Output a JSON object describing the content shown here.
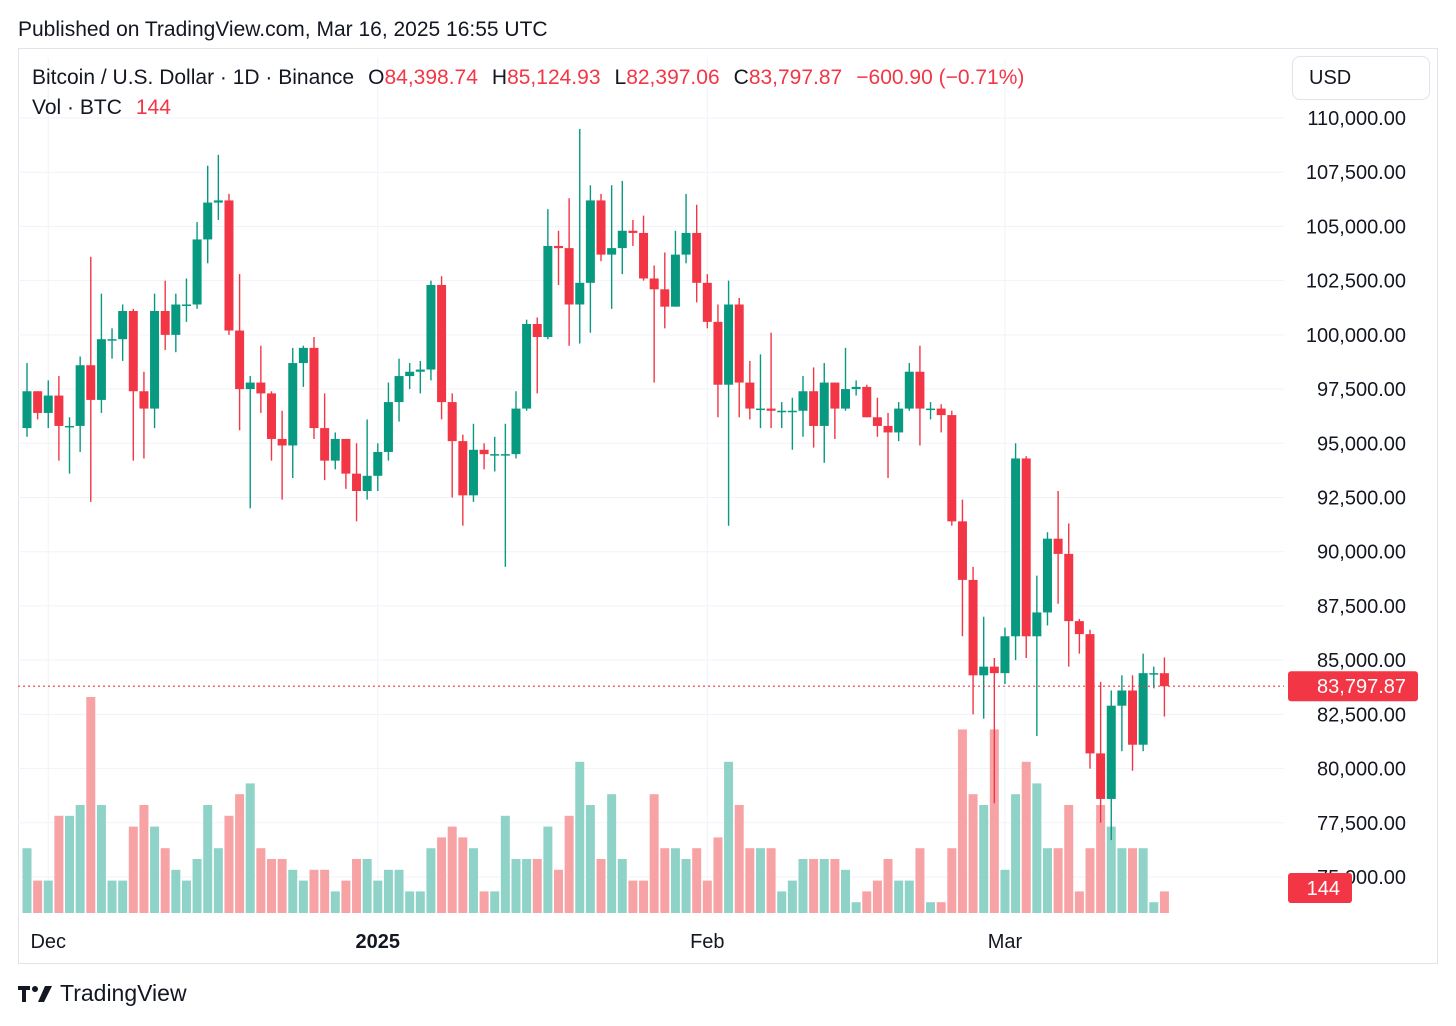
{
  "published": "Published on TradingView.com, Mar 16, 2025 16:55 UTC",
  "legend": {
    "symbol": "Bitcoin / U.S. Dollar · 1D · Binance",
    "o_label": "O",
    "o_value": "84,398.74",
    "h_label": "H",
    "h_value": "85,124.93",
    "l_label": "L",
    "l_value": "82,397.06",
    "c_label": "C",
    "c_value": "83,797.87",
    "change": "−600.90 (−0.71%)",
    "vol_label": "Vol · BTC",
    "vol_value": "144"
  },
  "currency": "USD",
  "footer_brand": "TradingView",
  "colors": {
    "up": "#089981",
    "down": "#f23645",
    "up_vol": "#8fd3c8",
    "down_vol": "#f7a3a6",
    "grid": "#f0f3fa"
  },
  "chart_data": {
    "type": "candlestick",
    "title": "Bitcoin / U.S. Dollar · 1D · Binance",
    "y_ticks": [
      "110,000.00",
      "107,500.00",
      "105,000.00",
      "102,500.00",
      "100,000.00",
      "97,500.00",
      "95,000.00",
      "92,500.00",
      "90,000.00",
      "87,500.00",
      "85,000.00",
      "82,500.00",
      "80,000.00",
      "77,500.00",
      "75,000.00"
    ],
    "y_tick_values": [
      110000,
      107500,
      105000,
      102500,
      100000,
      97500,
      95000,
      92500,
      90000,
      87500,
      85000,
      82500,
      80000,
      77500,
      75000
    ],
    "x_ticks": [
      {
        "label": "Dec",
        "date": "2024-12-01",
        "bold": false
      },
      {
        "label": "2025",
        "date": "2025-01-01",
        "bold": true
      },
      {
        "label": "Feb",
        "date": "2025-02-01",
        "bold": false
      },
      {
        "label": "Mar",
        "date": "2025-03-01",
        "bold": false
      }
    ],
    "last_price_label": "83,797.87",
    "last_price": 83797.87,
    "last_volume_label": "144",
    "candles": [
      {
        "date": "2024-11-29",
        "o": 95700,
        "h": 98700,
        "l": 95300,
        "c": 97400,
        "v": 6
      },
      {
        "date": "2024-11-30",
        "o": 97400,
        "h": 97400,
        "l": 96100,
        "c": 96400,
        "v": 3
      },
      {
        "date": "2024-12-01",
        "o": 96400,
        "h": 97900,
        "l": 95700,
        "c": 97200,
        "v": 3
      },
      {
        "date": "2024-12-02",
        "o": 97200,
        "h": 98100,
        "l": 94200,
        "c": 95800,
        "v": 9
      },
      {
        "date": "2024-12-03",
        "o": 95800,
        "h": 96200,
        "l": 93600,
        "c": 95800,
        "v": 9
      },
      {
        "date": "2024-12-04",
        "o": 95800,
        "h": 99000,
        "l": 94600,
        "c": 98600,
        "v": 10
      },
      {
        "date": "2024-12-05",
        "o": 98600,
        "h": 103600,
        "l": 92300,
        "c": 97000,
        "v": 20
      },
      {
        "date": "2024-12-06",
        "o": 97000,
        "h": 101900,
        "l": 96400,
        "c": 99800,
        "v": 10
      },
      {
        "date": "2024-12-07",
        "o": 99800,
        "h": 100300,
        "l": 98900,
        "c": 99800,
        "v": 3
      },
      {
        "date": "2024-12-08",
        "o": 99800,
        "h": 101400,
        "l": 98800,
        "c": 101100,
        "v": 3
      },
      {
        "date": "2024-12-09",
        "o": 101100,
        "h": 101200,
        "l": 94200,
        "c": 97400,
        "v": 8
      },
      {
        "date": "2024-12-10",
        "o": 97400,
        "h": 98300,
        "l": 94300,
        "c": 96600,
        "v": 10
      },
      {
        "date": "2024-12-11",
        "o": 96600,
        "h": 101900,
        "l": 95700,
        "c": 101100,
        "v": 8
      },
      {
        "date": "2024-12-12",
        "o": 101100,
        "h": 102500,
        "l": 99300,
        "c": 100000,
        "v": 6
      },
      {
        "date": "2024-12-13",
        "o": 100000,
        "h": 101900,
        "l": 99200,
        "c": 101400,
        "v": 4
      },
      {
        "date": "2024-12-14",
        "o": 101400,
        "h": 102600,
        "l": 100600,
        "c": 101400,
        "v": 3
      },
      {
        "date": "2024-12-15",
        "o": 101400,
        "h": 105200,
        "l": 101200,
        "c": 104400,
        "v": 5
      },
      {
        "date": "2024-12-16",
        "o": 104400,
        "h": 107800,
        "l": 103300,
        "c": 106100,
        "v": 10
      },
      {
        "date": "2024-12-17",
        "o": 106100,
        "h": 108300,
        "l": 105300,
        "c": 106200,
        "v": 6
      },
      {
        "date": "2024-12-18",
        "o": 106200,
        "h": 106500,
        "l": 100000,
        "c": 100200,
        "v": 9
      },
      {
        "date": "2024-12-19",
        "o": 100200,
        "h": 102800,
        "l": 95600,
        "c": 97500,
        "v": 11
      },
      {
        "date": "2024-12-20",
        "o": 97500,
        "h": 98100,
        "l": 92000,
        "c": 97800,
        "v": 12
      },
      {
        "date": "2024-12-21",
        "o": 97800,
        "h": 99500,
        "l": 96400,
        "c": 97300,
        "v": 6
      },
      {
        "date": "2024-12-22",
        "o": 97300,
        "h": 97400,
        "l": 94200,
        "c": 95200,
        "v": 5
      },
      {
        "date": "2024-12-23",
        "o": 95200,
        "h": 96500,
        "l": 92400,
        "c": 94900,
        "v": 5
      },
      {
        "date": "2024-12-24",
        "o": 94900,
        "h": 99400,
        "l": 93400,
        "c": 98700,
        "v": 4
      },
      {
        "date": "2024-12-25",
        "o": 98700,
        "h": 99500,
        "l": 97600,
        "c": 99400,
        "v": 3
      },
      {
        "date": "2024-12-26",
        "o": 99400,
        "h": 99900,
        "l": 95200,
        "c": 95700,
        "v": 4
      },
      {
        "date": "2024-12-27",
        "o": 95700,
        "h": 97300,
        "l": 93300,
        "c": 94200,
        "v": 4
      },
      {
        "date": "2024-12-28",
        "o": 94200,
        "h": 95500,
        "l": 93800,
        "c": 95200,
        "v": 2
      },
      {
        "date": "2024-12-29",
        "o": 95200,
        "h": 95200,
        "l": 92900,
        "c": 93600,
        "v": 3
      },
      {
        "date": "2024-12-30",
        "o": 93600,
        "h": 95000,
        "l": 91400,
        "c": 92800,
        "v": 5
      },
      {
        "date": "2024-12-31",
        "o": 92800,
        "h": 96100,
        "l": 92400,
        "c": 93500,
        "v": 5
      },
      {
        "date": "2025-01-01",
        "o": 93500,
        "h": 95000,
        "l": 92800,
        "c": 94600,
        "v": 3
      },
      {
        "date": "2025-01-02",
        "o": 94600,
        "h": 97800,
        "l": 94200,
        "c": 96900,
        "v": 4
      },
      {
        "date": "2025-01-03",
        "o": 96900,
        "h": 98900,
        "l": 96000,
        "c": 98100,
        "v": 4
      },
      {
        "date": "2025-01-04",
        "o": 98100,
        "h": 98700,
        "l": 97500,
        "c": 98300,
        "v": 2
      },
      {
        "date": "2025-01-05",
        "o": 98300,
        "h": 98800,
        "l": 97300,
        "c": 98400,
        "v": 2
      },
      {
        "date": "2025-01-06",
        "o": 98400,
        "h": 102500,
        "l": 97900,
        "c": 102300,
        "v": 6
      },
      {
        "date": "2025-01-07",
        "o": 102300,
        "h": 102700,
        "l": 96100,
        "c": 96900,
        "v": 7
      },
      {
        "date": "2025-01-08",
        "o": 96900,
        "h": 97300,
        "l": 92500,
        "c": 95100,
        "v": 8
      },
      {
        "date": "2025-01-09",
        "o": 95100,
        "h": 95400,
        "l": 91200,
        "c": 92600,
        "v": 7
      },
      {
        "date": "2025-01-10",
        "o": 92600,
        "h": 95900,
        "l": 92300,
        "c": 94700,
        "v": 6
      },
      {
        "date": "2025-01-11",
        "o": 94700,
        "h": 95000,
        "l": 93800,
        "c": 94500,
        "v": 2
      },
      {
        "date": "2025-01-12",
        "o": 94500,
        "h": 95300,
        "l": 93700,
        "c": 94500,
        "v": 2
      },
      {
        "date": "2025-01-13",
        "o": 94500,
        "h": 95900,
        "l": 89300,
        "c": 94500,
        "v": 9
      },
      {
        "date": "2025-01-14",
        "o": 94500,
        "h": 97400,
        "l": 94300,
        "c": 96600,
        "v": 5
      },
      {
        "date": "2025-01-15",
        "o": 96600,
        "h": 100700,
        "l": 96500,
        "c": 100500,
        "v": 5
      },
      {
        "date": "2025-01-16",
        "o": 100500,
        "h": 100800,
        "l": 97300,
        "c": 99900,
        "v": 5
      },
      {
        "date": "2025-01-17",
        "o": 99900,
        "h": 105800,
        "l": 99800,
        "c": 104100,
        "v": 8
      },
      {
        "date": "2025-01-18",
        "o": 104100,
        "h": 104800,
        "l": 102300,
        "c": 104000,
        "v": 4
      },
      {
        "date": "2025-01-19",
        "o": 104000,
        "h": 106300,
        "l": 99500,
        "c": 101400,
        "v": 9
      },
      {
        "date": "2025-01-20",
        "o": 101400,
        "h": 109500,
        "l": 99600,
        "c": 102400,
        "v": 14
      },
      {
        "date": "2025-01-21",
        "o": 102400,
        "h": 106900,
        "l": 100100,
        "c": 106200,
        "v": 10
      },
      {
        "date": "2025-01-22",
        "o": 106200,
        "h": 106500,
        "l": 103400,
        "c": 103700,
        "v": 5
      },
      {
        "date": "2025-01-23",
        "o": 103700,
        "h": 106900,
        "l": 101200,
        "c": 104000,
        "v": 11
      },
      {
        "date": "2025-01-24",
        "o": 104000,
        "h": 107100,
        "l": 102800,
        "c": 104800,
        "v": 5
      },
      {
        "date": "2025-01-25",
        "o": 104800,
        "h": 105300,
        "l": 104100,
        "c": 104700,
        "v": 3
      },
      {
        "date": "2025-01-26",
        "o": 104700,
        "h": 105500,
        "l": 102500,
        "c": 102600,
        "v": 3
      },
      {
        "date": "2025-01-27",
        "o": 102600,
        "h": 103200,
        "l": 97800,
        "c": 102100,
        "v": 11
      },
      {
        "date": "2025-01-28",
        "o": 102100,
        "h": 103800,
        "l": 100300,
        "c": 101300,
        "v": 6
      },
      {
        "date": "2025-01-29",
        "o": 101300,
        "h": 104800,
        "l": 101300,
        "c": 103700,
        "v": 6
      },
      {
        "date": "2025-01-30",
        "o": 103700,
        "h": 106500,
        "l": 103300,
        "c": 104700,
        "v": 5
      },
      {
        "date": "2025-01-31",
        "o": 104700,
        "h": 106000,
        "l": 101500,
        "c": 102400,
        "v": 6
      },
      {
        "date": "2025-02-01",
        "o": 102400,
        "h": 102800,
        "l": 100300,
        "c": 100600,
        "v": 3
      },
      {
        "date": "2025-02-02",
        "o": 100600,
        "h": 101400,
        "l": 96200,
        "c": 97700,
        "v": 7
      },
      {
        "date": "2025-02-03",
        "o": 97700,
        "h": 102500,
        "l": 91200,
        "c": 101400,
        "v": 14
      },
      {
        "date": "2025-02-04",
        "o": 101400,
        "h": 101700,
        "l": 96200,
        "c": 97800,
        "v": 10
      },
      {
        "date": "2025-02-05",
        "o": 97800,
        "h": 98800,
        "l": 96100,
        "c": 96600,
        "v": 6
      },
      {
        "date": "2025-02-06",
        "o": 96600,
        "h": 99100,
        "l": 95700,
        "c": 96600,
        "v": 6
      },
      {
        "date": "2025-02-07",
        "o": 96600,
        "h": 100100,
        "l": 95700,
        "c": 96500,
        "v": 6
      },
      {
        "date": "2025-02-08",
        "o": 96500,
        "h": 96900,
        "l": 95700,
        "c": 96500,
        "v": 2
      },
      {
        "date": "2025-02-09",
        "o": 96500,
        "h": 97100,
        "l": 94700,
        "c": 96500,
        "v": 3
      },
      {
        "date": "2025-02-10",
        "o": 96500,
        "h": 98100,
        "l": 95300,
        "c": 97400,
        "v": 5
      },
      {
        "date": "2025-02-11",
        "o": 97400,
        "h": 98500,
        "l": 94800,
        "c": 95800,
        "v": 5
      },
      {
        "date": "2025-02-12",
        "o": 95800,
        "h": 98700,
        "l": 94100,
        "c": 97800,
        "v": 5
      },
      {
        "date": "2025-02-13",
        "o": 97800,
        "h": 97800,
        "l": 95200,
        "c": 96600,
        "v": 5
      },
      {
        "date": "2025-02-14",
        "o": 96600,
        "h": 99400,
        "l": 96500,
        "c": 97500,
        "v": 4
      },
      {
        "date": "2025-02-15",
        "o": 97500,
        "h": 97900,
        "l": 97200,
        "c": 97600,
        "v": 1
      },
      {
        "date": "2025-02-16",
        "o": 97600,
        "h": 97700,
        "l": 96200,
        "c": 96200,
        "v": 2
      },
      {
        "date": "2025-02-17",
        "o": 96200,
        "h": 97100,
        "l": 95300,
        "c": 95800,
        "v": 3
      },
      {
        "date": "2025-02-18",
        "o": 95800,
        "h": 96400,
        "l": 93400,
        "c": 95500,
        "v": 5
      },
      {
        "date": "2025-02-19",
        "o": 95500,
        "h": 96900,
        "l": 95100,
        "c": 96600,
        "v": 3
      },
      {
        "date": "2025-02-20",
        "o": 96600,
        "h": 98700,
        "l": 96500,
        "c": 98300,
        "v": 3
      },
      {
        "date": "2025-02-21",
        "o": 98300,
        "h": 99500,
        "l": 94900,
        "c": 96600,
        "v": 6
      },
      {
        "date": "2025-02-22",
        "o": 96600,
        "h": 96900,
        "l": 96100,
        "c": 96600,
        "v": 1
      },
      {
        "date": "2025-02-23",
        "o": 96600,
        "h": 96800,
        "l": 95500,
        "c": 96300,
        "v": 1
      },
      {
        "date": "2025-02-24",
        "o": 96300,
        "h": 96500,
        "l": 91200,
        "c": 91400,
        "v": 6
      },
      {
        "date": "2025-02-25",
        "o": 91400,
        "h": 92400,
        "l": 86100,
        "c": 88700,
        "v": 17
      },
      {
        "date": "2025-02-26",
        "o": 88700,
        "h": 89300,
        "l": 82500,
        "c": 84300,
        "v": 11
      },
      {
        "date": "2025-02-27",
        "o": 84300,
        "h": 87000,
        "l": 82300,
        "c": 84700,
        "v": 10
      },
      {
        "date": "2025-02-28",
        "o": 84700,
        "h": 85100,
        "l": 78400,
        "c": 84400,
        "v": 17
      },
      {
        "date": "2025-03-01",
        "o": 84400,
        "h": 86500,
        "l": 83900,
        "c": 86100,
        "v": 4
      },
      {
        "date": "2025-03-02",
        "o": 86100,
        "h": 95000,
        "l": 85000,
        "c": 94300,
        "v": 11
      },
      {
        "date": "2025-03-03",
        "o": 94300,
        "h": 94400,
        "l": 85100,
        "c": 86100,
        "v": 14
      },
      {
        "date": "2025-03-04",
        "o": 86100,
        "h": 88900,
        "l": 81500,
        "c": 87200,
        "v": 12
      },
      {
        "date": "2025-03-05",
        "o": 87200,
        "h": 90900,
        "l": 86600,
        "c": 90600,
        "v": 6
      },
      {
        "date": "2025-03-06",
        "o": 90600,
        "h": 92800,
        "l": 87600,
        "c": 89900,
        "v": 6
      },
      {
        "date": "2025-03-07",
        "o": 89900,
        "h": 91300,
        "l": 84700,
        "c": 86800,
        "v": 10
      },
      {
        "date": "2025-03-08",
        "o": 86800,
        "h": 86900,
        "l": 85300,
        "c": 86200,
        "v": 2
      },
      {
        "date": "2025-03-09",
        "o": 86200,
        "h": 86400,
        "l": 80000,
        "c": 80700,
        "v": 6
      },
      {
        "date": "2025-03-10",
        "o": 80700,
        "h": 84000,
        "l": 77500,
        "c": 78600,
        "v": 10
      },
      {
        "date": "2025-03-11",
        "o": 78600,
        "h": 83600,
        "l": 76700,
        "c": 82900,
        "v": 8
      },
      {
        "date": "2025-03-12",
        "o": 82900,
        "h": 84300,
        "l": 80800,
        "c": 83600,
        "v": 6
      },
      {
        "date": "2025-03-13",
        "o": 83600,
        "h": 84300,
        "l": 79900,
        "c": 81100,
        "v": 6
      },
      {
        "date": "2025-03-14",
        "o": 81100,
        "h": 85300,
        "l": 80800,
        "c": 84400,
        "v": 6
      },
      {
        "date": "2025-03-15",
        "o": 84400,
        "h": 84700,
        "l": 83700,
        "c": 84400,
        "v": 1
      },
      {
        "date": "2025-03-16",
        "o": 84398.74,
        "h": 85124.93,
        "l": 82397.06,
        "c": 83797.87,
        "v": 2
      }
    ]
  }
}
